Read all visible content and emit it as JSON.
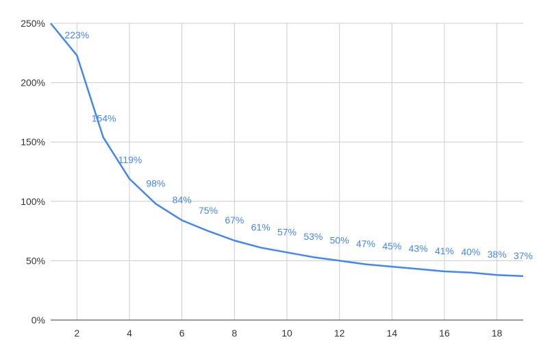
{
  "chart_data": {
    "type": "line",
    "title": "",
    "xlabel": "",
    "ylabel": "",
    "x": [
      1,
      2,
      3,
      4,
      5,
      6,
      7,
      8,
      9,
      10,
      11,
      12,
      13,
      14,
      15,
      16,
      17,
      18,
      19
    ],
    "series": [
      {
        "values": [
          250,
          223,
          154,
          119,
          98,
          84,
          75,
          67,
          61,
          57,
          53,
          50,
          47,
          45,
          43,
          41,
          40,
          38,
          37
        ],
        "data_labels": [
          "223%",
          "154%",
          "119%",
          "98%",
          "84%",
          "75%",
          "67%",
          "61%",
          "57%",
          "53%",
          "50%",
          "47%",
          "45%",
          "43%",
          "41%",
          "40%",
          "38%",
          "37%"
        ],
        "color": "#4285f4"
      }
    ],
    "xlim": [
      1,
      19
    ],
    "ylim": [
      0,
      250
    ],
    "xticks": [
      "2",
      "4",
      "6",
      "8",
      "10",
      "12",
      "14",
      "16",
      "18"
    ],
    "yticks": [
      "0%",
      "50%",
      "100%",
      "150%",
      "200%",
      "250%"
    ],
    "grid": true,
    "legend": "none"
  }
}
